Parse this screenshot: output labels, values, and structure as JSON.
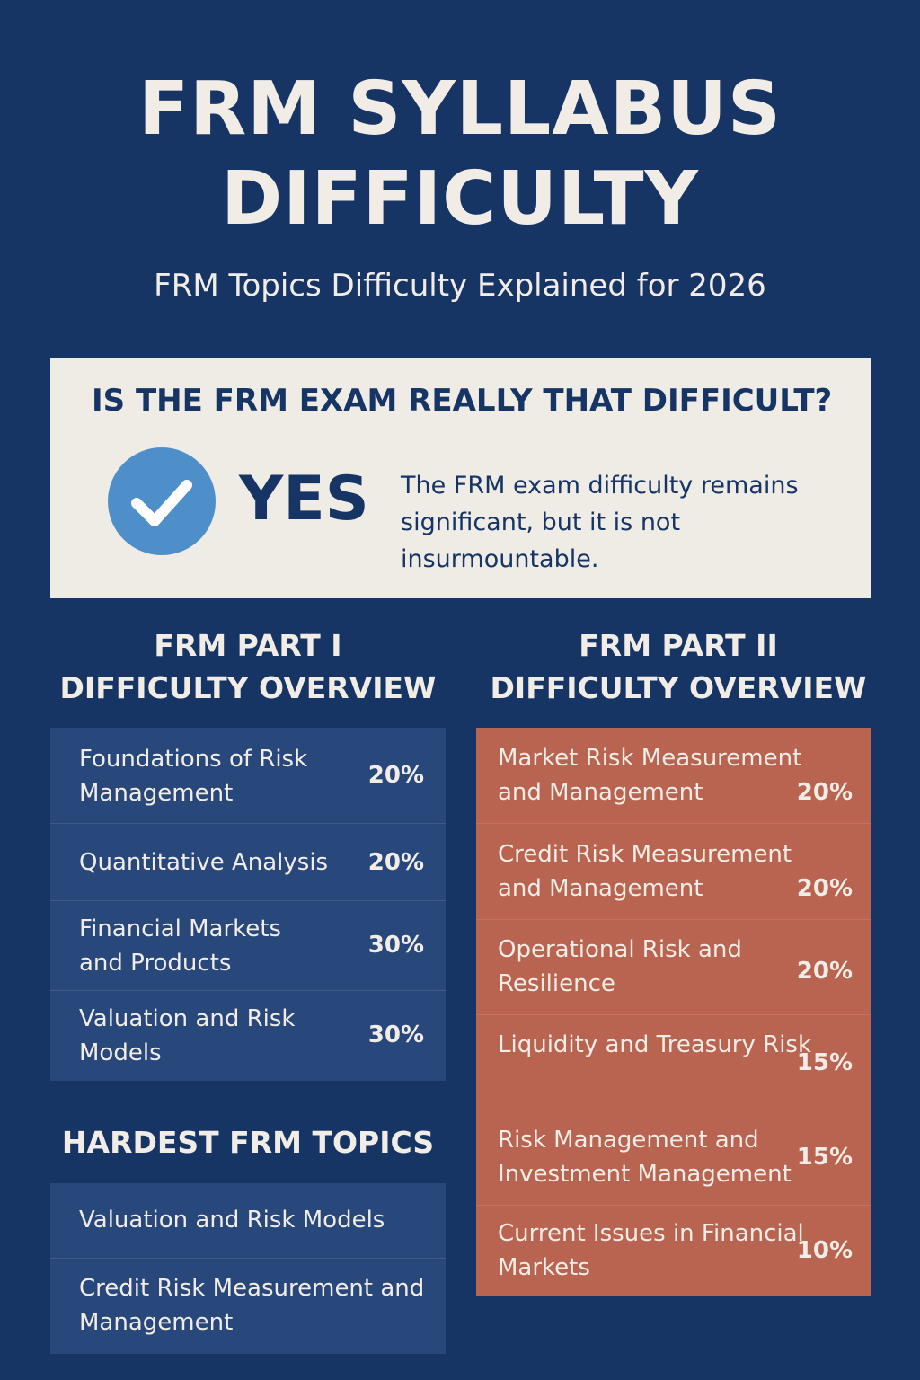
{
  "header": {
    "title_line1": "FRM SYLLABUS",
    "title_line2": "DIFFICULTY",
    "subtitle": "FRM Topics Difficulty Explained for 2026"
  },
  "banner": {
    "question": "IS THE FRM EXAM REALLY THAT DIFFICULT?",
    "answer": "YES",
    "description": "The FRM exam difficulty remains significant, but it is not insurmountable.",
    "icon": "check-icon",
    "icon_color": "#4f8fc9"
  },
  "part1": {
    "heading_line1": "FRM PART I",
    "heading_line2": "DIFFICULTY OVERVIEW",
    "color": "#28477a",
    "topics": [
      {
        "name": "Foundations of Risk Management",
        "weight": "20%"
      },
      {
        "name": "Quantitative Analysis",
        "weight": "20%"
      },
      {
        "name": "Financial Markets and Products",
        "weight": "30%"
      },
      {
        "name": "Valuation and Risk Models",
        "weight": "30%"
      }
    ]
  },
  "part2": {
    "heading_line1": "FRM PART II",
    "heading_line2": "DIFFICULTY OVERVIEW",
    "color": "#b96450",
    "topics": [
      {
        "name": "Market Risk Measurement and Management",
        "weight": "20%"
      },
      {
        "name": "Credit Risk Measurement and Management",
        "weight": "20%"
      },
      {
        "name": "Operational Risk and Resilience",
        "weight": "20%"
      },
      {
        "name": "Liquidity and Treasury Risk",
        "weight": "15%"
      },
      {
        "name": "Risk Management and Investment Management",
        "weight": "15%"
      },
      {
        "name": "Current Issues in Financial Markets",
        "weight": "10%"
      }
    ]
  },
  "hardest": {
    "heading": "HARDEST FRM TOPICS",
    "topics": [
      {
        "name": "Valuation and Risk Models"
      },
      {
        "name": "Credit Risk Measurement and Management"
      }
    ]
  }
}
